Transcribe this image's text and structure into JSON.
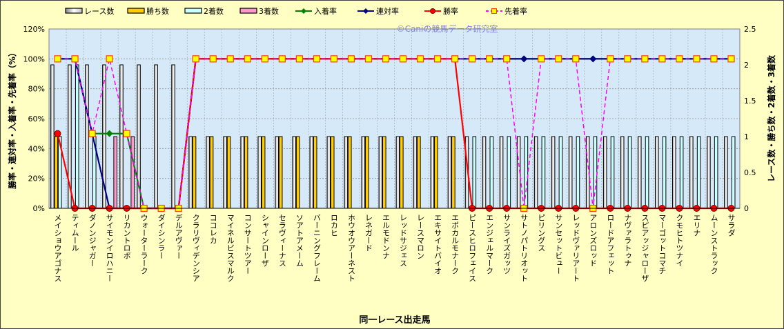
{
  "chart_data": {
    "type": "bar",
    "title": "",
    "watermark": "©Caniの競馬データ研究室",
    "xlabel": "同一レース出走馬",
    "ylabel_left": "勝率・連対率・入着率・先着率（%）",
    "ylabel_right": "レース数・勝ち数・2着数・3着数",
    "ylim_left": [
      0,
      120
    ],
    "ylim_right": [
      0,
      2.5
    ],
    "yticks_left": [
      "0%",
      "20%",
      "40%",
      "60%",
      "80%",
      "100%",
      "120%"
    ],
    "yticks_right": [
      "0",
      "0.5",
      "1",
      "1.5",
      "2",
      "2.5"
    ],
    "grid": true,
    "legend_position": "top",
    "categories": [
      "メイショウアゴナス",
      "ティムール",
      "ダノンジャガー",
      "サイモンイロハニー",
      "リカントロポ",
      "ウォーターラーク",
      "ダイシンラー",
      "デルアヴァー",
      "クラリヴィデンシア",
      "ココレカ",
      "マイネルビスマルク",
      "コンサートツアー",
      "シャインローザ",
      "セラヴィーナス",
      "ソアトアメーム",
      "バーニングフレーム",
      "ロカヒ",
      "ホウオウアーネスト",
      "レネガード",
      "エルモドンナ",
      "レッドサジェス",
      "レースマロン",
      "エキサイトバイオ",
      "エポカルモナーク",
      "ピースヒロフェイス",
      "エンジェルマーク",
      "サンライズガッツ",
      "サトノパトリオット",
      "ピリングス",
      "サンセットビュー",
      "レッドヴァリアート",
      "アロンズロッド",
      "ロードアフェット",
      "ナヴァラトゥナ",
      "スピアッジャローザ",
      "マーゴットコマチ",
      "クモヒトツナイ",
      "エリナ",
      "ムーンストラック",
      "サラダ"
    ],
    "bar_series": [
      {
        "name": "レース数",
        "color": "#E0E0E0",
        "values": [
          2,
          2,
          2,
          2,
          2,
          2,
          2,
          2,
          1,
          1,
          1,
          1,
          1,
          1,
          1,
          1,
          1,
          1,
          1,
          1,
          1,
          1,
          1,
          1,
          1,
          1,
          1,
          1,
          1,
          1,
          1,
          1,
          1,
          1,
          1,
          1,
          1,
          1,
          1,
          1
        ]
      },
      {
        "name": "勝ち数",
        "color": "#FFCC00",
        "values": [
          1,
          0,
          0,
          0,
          0,
          0,
          0,
          0,
          1,
          1,
          1,
          1,
          1,
          1,
          1,
          1,
          1,
          1,
          1,
          1,
          1,
          1,
          1,
          1,
          0,
          0,
          0,
          0,
          0,
          0,
          0,
          0,
          0,
          0,
          0,
          0,
          0,
          0,
          0,
          0
        ]
      },
      {
        "name": "2着数",
        "color": "#CCFFFF",
        "values": [
          1,
          2,
          1,
          0,
          0,
          0,
          0,
          0,
          0,
          0,
          0,
          0,
          0,
          0,
          0,
          0,
          0,
          0,
          0,
          0,
          0,
          0,
          0,
          0,
          1,
          1,
          1,
          1,
          1,
          1,
          1,
          1,
          1,
          1,
          1,
          1,
          1,
          1,
          1,
          1
        ]
      },
      {
        "name": "3着数",
        "color": "#FF99CC",
        "values": [
          0,
          0,
          0,
          1,
          1,
          0,
          0,
          0,
          0,
          0,
          0,
          0,
          0,
          0,
          0,
          0,
          0,
          0,
          0,
          0,
          0,
          0,
          0,
          0,
          0,
          0,
          0,
          0,
          0,
          0,
          0,
          0,
          0,
          0,
          0,
          0,
          0,
          0,
          0,
          0
        ]
      }
    ],
    "line_series": [
      {
        "name": "入着率",
        "color": "#008000",
        "marker": "diamond",
        "values": [
          100,
          100,
          50,
          50,
          50,
          0,
          0,
          0,
          100,
          100,
          100,
          100,
          100,
          100,
          100,
          100,
          100,
          100,
          100,
          100,
          100,
          100,
          100,
          100,
          100,
          100,
          100,
          100,
          100,
          100,
          100,
          100,
          100,
          100,
          100,
          100,
          100,
          100,
          100,
          100
        ]
      },
      {
        "name": "連対率",
        "color": "#000080",
        "marker": "diamond",
        "values": [
          100,
          100,
          50,
          0,
          0,
          0,
          0,
          0,
          100,
          100,
          100,
          100,
          100,
          100,
          100,
          100,
          100,
          100,
          100,
          100,
          100,
          100,
          100,
          100,
          100,
          100,
          100,
          100,
          100,
          100,
          100,
          100,
          100,
          100,
          100,
          100,
          100,
          100,
          100,
          100
        ]
      },
      {
        "name": "勝率",
        "color": "#FF0000",
        "marker": "circle",
        "values": [
          50,
          0,
          0,
          0,
          0,
          0,
          0,
          0,
          100,
          100,
          100,
          100,
          100,
          100,
          100,
          100,
          100,
          100,
          100,
          100,
          100,
          100,
          100,
          100,
          0,
          0,
          0,
          0,
          0,
          0,
          0,
          0,
          0,
          0,
          0,
          0,
          0,
          0,
          0,
          0
        ]
      },
      {
        "name": "先着率",
        "color": "#FF00FF",
        "marker": "square",
        "dashed": true,
        "values": [
          100,
          100,
          50,
          100,
          50,
          0,
          0,
          0,
          100,
          100,
          100,
          100,
          100,
          100,
          100,
          100,
          100,
          100,
          100,
          100,
          100,
          100,
          100,
          100,
          100,
          100,
          100,
          0,
          100,
          100,
          100,
          0,
          100,
          100,
          100,
          100,
          100,
          100,
          100,
          100
        ]
      }
    ]
  }
}
